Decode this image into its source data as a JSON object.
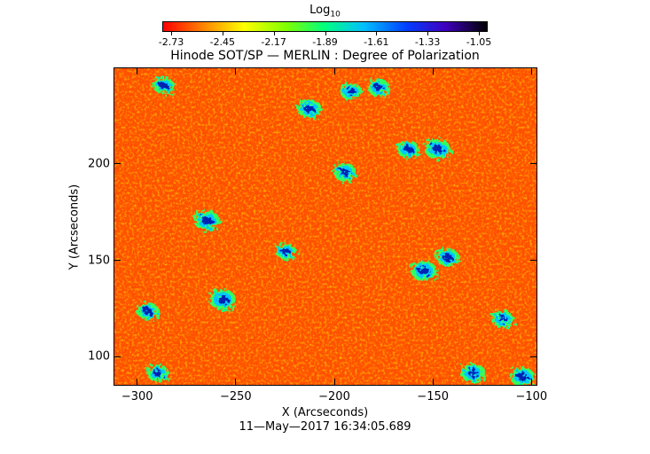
{
  "colorbar": {
    "title_main": "Log",
    "title_sub": "10",
    "tick_labels": [
      "-2.73",
      "-2.45",
      "-2.17",
      "-1.89",
      "-1.61",
      "-1.33",
      "-1.05"
    ]
  },
  "title": "Hinode SOT/SP — MERLIN : Degree of Polarization",
  "timestamp": "11—May—2017 16:34:05.689",
  "chart_data": {
    "type": "heatmap",
    "title": "Hinode SOT/SP — MERLIN : Degree of Polarization",
    "xlabel": "X (Arcseconds)",
    "ylabel": "Y (Arcseconds)",
    "xlim": [
      -312,
      -97
    ],
    "ylim": [
      85,
      250
    ],
    "x_ticks": [
      -300,
      -250,
      -200,
      -150,
      -100
    ],
    "x_tick_labels": [
      "−300",
      "−250",
      "−200",
      "−150",
      "−100"
    ],
    "y_ticks": [
      100,
      150,
      200
    ],
    "y_tick_labels": [
      "100",
      "150",
      "200"
    ],
    "colorbar_range": [
      -2.73,
      -1.05
    ],
    "colormap": [
      "#ff0000",
      "#ff8000",
      "#ffff00",
      "#00ff80",
      "#0040ff",
      "#000000"
    ],
    "background_level": -2.6,
    "strong_polarization_patches": [
      {
        "x": -265,
        "y": 171,
        "level": -1.5
      },
      {
        "x": -257,
        "y": 130,
        "level": -1.45
      },
      {
        "x": -213,
        "y": 229,
        "level": -1.6
      },
      {
        "x": -195,
        "y": 196,
        "level": -1.7
      },
      {
        "x": -163,
        "y": 208,
        "level": -1.75
      },
      {
        "x": -148,
        "y": 208,
        "level": -1.5
      },
      {
        "x": -155,
        "y": 145,
        "level": -1.5
      },
      {
        "x": -143,
        "y": 152,
        "level": -1.7
      },
      {
        "x": -295,
        "y": 124,
        "level": -1.8
      },
      {
        "x": -290,
        "y": 92,
        "level": -1.8
      },
      {
        "x": -130,
        "y": 92,
        "level": -1.6
      },
      {
        "x": -105,
        "y": 90,
        "level": -1.6
      },
      {
        "x": -192,
        "y": 238,
        "level": -1.8
      },
      {
        "x": -178,
        "y": 240,
        "level": -1.8
      },
      {
        "x": -287,
        "y": 241,
        "level": -1.8
      },
      {
        "x": -115,
        "y": 120,
        "level": -1.8
      },
      {
        "x": -225,
        "y": 155,
        "level": -1.9
      }
    ]
  }
}
